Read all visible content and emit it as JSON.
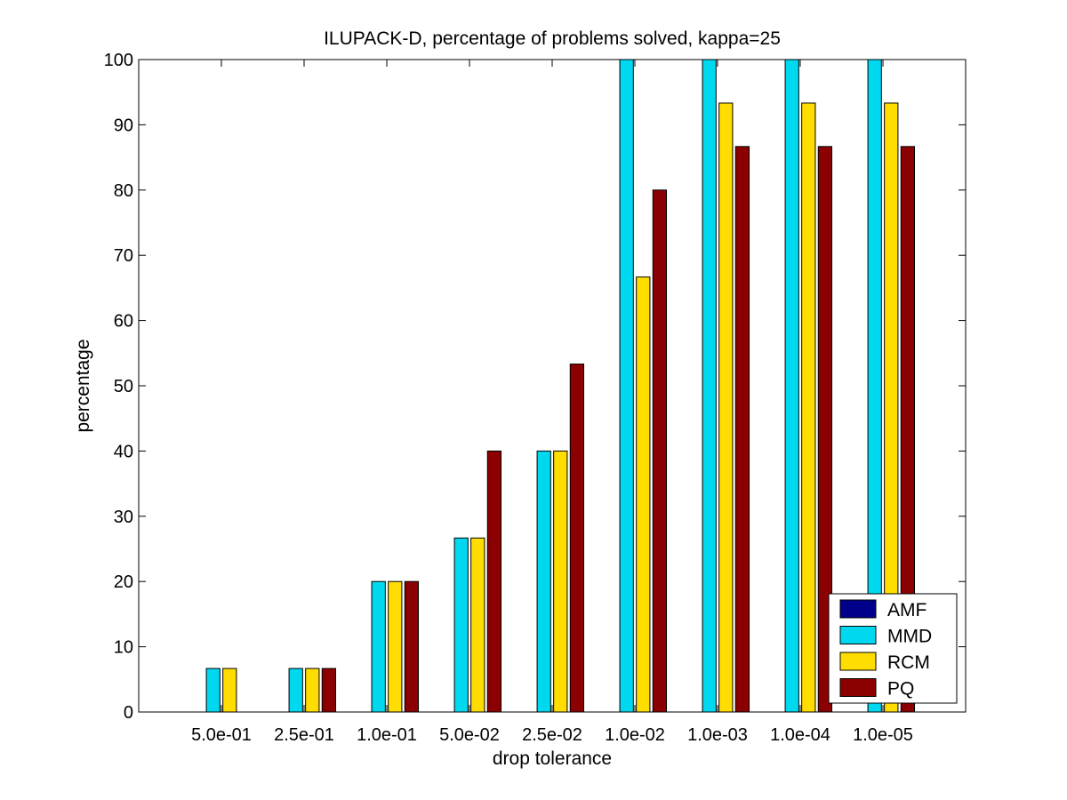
{
  "chart_data": {
    "type": "bar",
    "title": "ILUPACK-D, percentage of problems solved, kappa=25",
    "xlabel": "drop tolerance",
    "ylabel": "percentage",
    "ylim": [
      0,
      100
    ],
    "yticks": [
      0,
      10,
      20,
      30,
      40,
      50,
      60,
      70,
      80,
      90,
      100
    ],
    "categories": [
      "5.0e-01",
      "2.5e-01",
      "1.0e-01",
      "5.0e-02",
      "2.5e-02",
      "1.0e-02",
      "1.0e-03",
      "1.0e-04",
      "1.0e-05"
    ],
    "series": [
      {
        "name": "AMF",
        "color": "#00008b",
        "values": [
          0,
          0,
          0,
          0,
          0,
          0,
          0,
          0,
          0
        ]
      },
      {
        "name": "MMD",
        "color": "#00d8f0",
        "values": [
          6.67,
          6.67,
          20,
          26.67,
          40,
          100,
          100,
          100,
          100
        ]
      },
      {
        "name": "RCM",
        "color": "#ffdd00",
        "values": [
          6.67,
          6.67,
          20,
          26.67,
          40,
          66.67,
          93.33,
          93.33,
          93.33
        ]
      },
      {
        "name": "PQ",
        "color": "#8b0000",
        "values": [
          0,
          6.67,
          20,
          40,
          53.33,
          80,
          86.67,
          86.67,
          86.67
        ]
      }
    ],
    "grid": false,
    "legend_position": "bottom-right"
  }
}
